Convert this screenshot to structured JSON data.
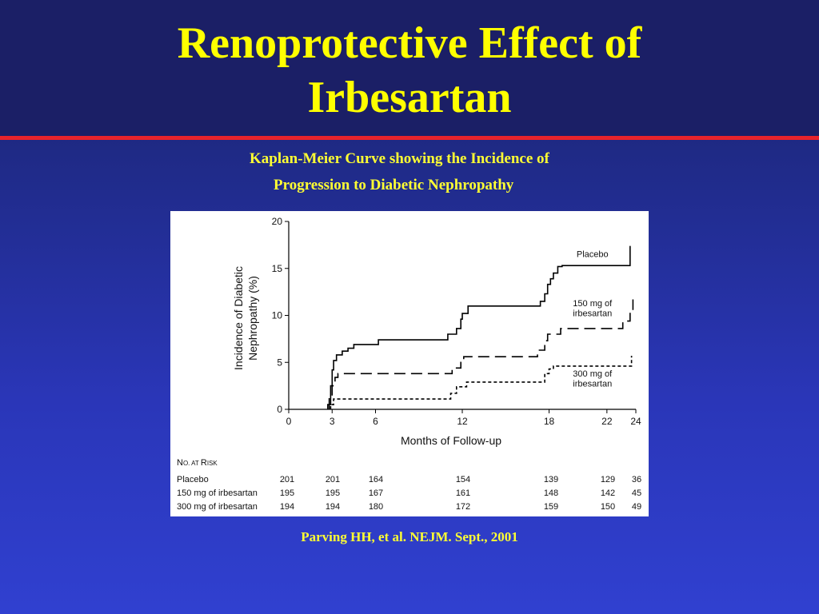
{
  "slide": {
    "title_line1": "Renoprotective Effect of",
    "title_line2": "Irbesartan",
    "subtitle_line1": "Kaplan-Meier Curve showing the Incidence of",
    "subtitle_line2": "Progression to Diabetic Nephropathy",
    "citation": "Parving HH, et al. NEJM. Sept., 2001",
    "colors": {
      "title": "#ffff00",
      "accent_rule": "#e8232b",
      "background": "#1f2a86"
    }
  },
  "chart_data": {
    "type": "line",
    "title": "",
    "xlabel": "Months of Follow-up",
    "ylabel_line1": "Incidence of Diabetic",
    "ylabel_line2": "Nephropathy (%)",
    "xlim": [
      0,
      24
    ],
    "ylim": [
      0,
      20
    ],
    "x_ticks": [
      0,
      3,
      6,
      12,
      18,
      22,
      24
    ],
    "y_ticks": [
      0,
      5,
      10,
      15,
      20
    ],
    "grid": false,
    "series": [
      {
        "name": "Placebo",
        "dash": "solid",
        "points": [
          [
            2.7,
            0
          ],
          [
            2.7,
            0.5
          ],
          [
            2.9,
            0.5
          ],
          [
            2.9,
            2.5
          ],
          [
            3.0,
            2.5
          ],
          [
            3.0,
            4.2
          ],
          [
            3.1,
            4.2
          ],
          [
            3.1,
            5.2
          ],
          [
            3.3,
            5.2
          ],
          [
            3.3,
            5.8
          ],
          [
            3.7,
            5.8
          ],
          [
            3.7,
            6.2
          ],
          [
            4.1,
            6.2
          ],
          [
            4.1,
            6.5
          ],
          [
            4.5,
            6.5
          ],
          [
            4.5,
            6.9
          ],
          [
            6.2,
            6.9
          ],
          [
            6.2,
            7.4
          ],
          [
            11.0,
            7.4
          ],
          [
            11.0,
            8.0
          ],
          [
            11.6,
            8.0
          ],
          [
            11.6,
            8.6
          ],
          [
            11.9,
            8.6
          ],
          [
            11.9,
            9.6
          ],
          [
            12.0,
            9.6
          ],
          [
            12.0,
            10.2
          ],
          [
            12.4,
            10.2
          ],
          [
            12.4,
            11.0
          ],
          [
            17.4,
            11.0
          ],
          [
            17.4,
            11.5
          ],
          [
            17.7,
            11.5
          ],
          [
            17.7,
            12.3
          ],
          [
            17.9,
            12.3
          ],
          [
            17.9,
            13.3
          ],
          [
            18.1,
            13.3
          ],
          [
            18.1,
            13.9
          ],
          [
            18.3,
            13.9
          ],
          [
            18.3,
            14.5
          ],
          [
            18.6,
            14.5
          ],
          [
            18.6,
            15.2
          ],
          [
            18.9,
            15.2
          ],
          [
            18.9,
            15.3
          ],
          [
            23.6,
            15.3
          ],
          [
            23.6,
            17.4
          ]
        ]
      },
      {
        "name": "150 mg of irbesartan",
        "dash": "long",
        "points": [
          [
            2.8,
            0
          ],
          [
            2.8,
            1.2
          ],
          [
            3.0,
            1.2
          ],
          [
            3.0,
            2.5
          ],
          [
            3.2,
            2.5
          ],
          [
            3.2,
            3.4
          ],
          [
            3.4,
            3.4
          ],
          [
            3.4,
            3.8
          ],
          [
            11.3,
            3.8
          ],
          [
            11.3,
            4.4
          ],
          [
            11.9,
            4.4
          ],
          [
            11.9,
            5.0
          ],
          [
            12.1,
            5.0
          ],
          [
            12.1,
            5.6
          ],
          [
            17.2,
            5.6
          ],
          [
            17.2,
            6.3
          ],
          [
            17.7,
            6.3
          ],
          [
            17.7,
            7.3
          ],
          [
            17.9,
            7.3
          ],
          [
            17.9,
            8.0
          ],
          [
            18.8,
            8.0
          ],
          [
            18.8,
            8.6
          ],
          [
            23.1,
            8.6
          ],
          [
            23.1,
            9.4
          ],
          [
            23.6,
            9.4
          ],
          [
            23.6,
            10.4
          ],
          [
            23.8,
            10.4
          ],
          [
            23.8,
            11.7
          ]
        ]
      },
      {
        "name": "300 mg of irbesartan",
        "dash": "short",
        "points": [
          [
            2.9,
            0
          ],
          [
            2.9,
            0.5
          ],
          [
            3.1,
            0.5
          ],
          [
            3.1,
            1.1
          ],
          [
            11.2,
            1.1
          ],
          [
            11.2,
            1.7
          ],
          [
            11.6,
            1.7
          ],
          [
            11.6,
            2.4
          ],
          [
            12.3,
            2.4
          ],
          [
            12.3,
            2.9
          ],
          [
            17.7,
            2.9
          ],
          [
            17.7,
            3.8
          ],
          [
            18.0,
            3.8
          ],
          [
            18.0,
            4.3
          ],
          [
            18.3,
            4.3
          ],
          [
            18.3,
            4.6
          ],
          [
            23.7,
            4.6
          ],
          [
            23.7,
            5.7
          ]
        ]
      }
    ],
    "legend_labels": [
      {
        "lines": [
          "Placebo"
        ],
        "x": 21,
        "y": 16.2
      },
      {
        "lines": [
          "150 mg of",
          "irbesartan"
        ],
        "x": 21,
        "y": 11.0
      },
      {
        "lines": [
          "300 mg of",
          "irbesartan"
        ],
        "x": 21,
        "y": 3.5
      }
    ],
    "risk_table": {
      "heading_parts": [
        "N",
        "O. AT ",
        "R",
        "ISK"
      ],
      "columns_months": [
        0,
        3,
        6,
        12,
        18,
        22,
        24
      ],
      "rows": [
        {
          "label": "Placebo",
          "values": [
            "201",
            "201",
            "164",
            "154",
            "139",
            "129",
            "36"
          ]
        },
        {
          "label": "150 mg of irbesartan",
          "values": [
            "195",
            "195",
            "167",
            "161",
            "148",
            "142",
            "45"
          ]
        },
        {
          "label": "300 mg of irbesartan",
          "values": [
            "194",
            "194",
            "180",
            "172",
            "159",
            "150",
            "49"
          ]
        }
      ]
    }
  }
}
